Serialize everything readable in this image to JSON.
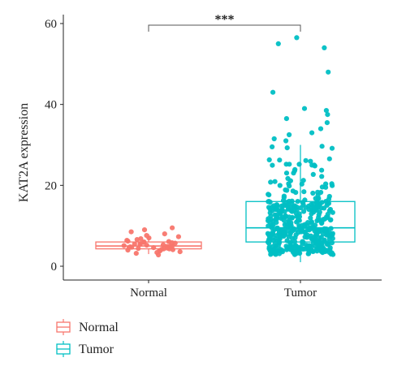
{
  "chart_data": {
    "type": "box",
    "title": "",
    "xlabel": "",
    "ylabel": "KAT2A expression",
    "ylim": [
      0,
      60
    ],
    "y_ticks": [
      0,
      20,
      40,
      60
    ],
    "grid": false,
    "legend_position": "bottom-left",
    "categories": [
      "Normal",
      "Tumor"
    ],
    "significance": {
      "between": [
        "Normal",
        "Tumor"
      ],
      "label": "***"
    },
    "series": [
      {
        "name": "Normal",
        "color": "#F8766D",
        "box": {
          "min": 3.0,
          "q1": 4.3,
          "median": 5.0,
          "q3": 6.0,
          "max": 8.0
        },
        "points": [
          2.8,
          3.2,
          3.4,
          3.6,
          3.8,
          3.9,
          4.0,
          4.1,
          4.2,
          4.3,
          4.3,
          4.4,
          4.5,
          4.6,
          4.6,
          4.7,
          4.8,
          4.9,
          5.0,
          5.0,
          5.1,
          5.2,
          5.3,
          5.4,
          5.5,
          5.6,
          5.7,
          5.8,
          5.9,
          6.0,
          6.1,
          6.2,
          6.4,
          6.6,
          6.8,
          7.0,
          7.3,
          7.6,
          8.0,
          8.5,
          9.0,
          9.5
        ]
      },
      {
        "name": "Tumor",
        "color": "#00BFC4",
        "box": {
          "min": 1.0,
          "q1": 6.0,
          "median": 9.5,
          "q3": 16.0,
          "max": 30.0
        },
        "points": [
          56.5,
          55.0,
          54.0,
          48.0,
          43.0,
          39.0,
          38.5,
          37.5,
          36.5,
          35.5,
          34.0,
          33.0,
          32.5,
          31.5,
          31.0
        ]
      }
    ]
  }
}
